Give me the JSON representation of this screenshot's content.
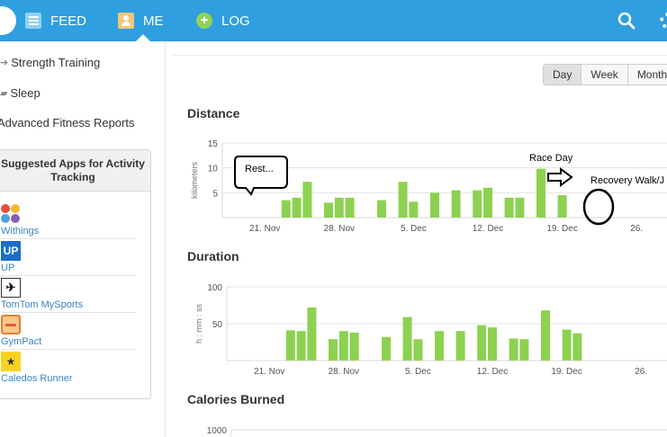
{
  "topnav": {
    "items": [
      {
        "label": "FEED",
        "icon": "feed-icon"
      },
      {
        "label": "ME",
        "icon": "me-icon"
      },
      {
        "label": "LOG",
        "icon": "log-plus-icon"
      }
    ],
    "active": "ME"
  },
  "sidebar": {
    "links": [
      {
        "label": "Strength Training",
        "icon": "arrow-right-icon"
      },
      {
        "label": "Sleep",
        "icon": "sleep-icon"
      },
      {
        "label": "Advanced Fitness Reports"
      }
    ],
    "apps_title": "Suggested Apps for Activity Tracking",
    "apps": [
      {
        "name": "Withings",
        "icon": "withings-logo-icon"
      },
      {
        "name": "UP",
        "icon": "up-logo-icon"
      },
      {
        "name": "TomTom MySports",
        "icon": "tomtom-logo-icon"
      },
      {
        "name": "GymPact",
        "icon": "gympact-logo-icon"
      },
      {
        "name": "Caledos Runner",
        "icon": "caledos-logo-icon"
      }
    ]
  },
  "range": {
    "buttons": [
      "Day",
      "Week",
      "Month"
    ],
    "active": "Day"
  },
  "sections": {
    "distance": "Distance",
    "duration": "Duration",
    "calories": "Calories Burned"
  },
  "annotations": {
    "rest": "Rest...",
    "race_day": "Race Day",
    "recovery": "Recovery Walk/J"
  },
  "colors": {
    "topbar": "#2f9fe0",
    "bar": "#8cd250",
    "link": "#3a85c3"
  },
  "chart_data": [
    {
      "type": "bar",
      "title": "Distance",
      "ylabel": "kilometers",
      "ylim": [
        0,
        15
      ],
      "yticks": [
        5,
        10,
        15
      ],
      "x_tick_labels": [
        "21. Nov",
        "28. Nov",
        "5. Dec",
        "12. Dec",
        "19. Dec",
        "26."
      ],
      "x_tick_days": [
        21,
        28,
        35,
        42,
        49,
        56
      ],
      "days": [
        17,
        18,
        19,
        20,
        21,
        22,
        23,
        24,
        25,
        26,
        27,
        28,
        29,
        30,
        31,
        32,
        33,
        34,
        35,
        36,
        37,
        38,
        39,
        40,
        41,
        42,
        43,
        44,
        45,
        46,
        47,
        48,
        49,
        50,
        51,
        52
      ],
      "values": [
        0,
        0,
        0,
        0,
        0,
        0,
        3.5,
        4,
        7.2,
        0,
        3,
        4,
        4,
        0,
        0,
        3.5,
        0,
        7.2,
        3.2,
        0,
        5,
        0,
        5.5,
        0,
        5.5,
        6,
        0,
        4,
        4,
        0,
        9.8,
        0,
        4.5,
        0,
        0,
        0
      ]
    },
    {
      "type": "bar",
      "title": "Duration",
      "ylabel": "h : mm : ss",
      "ylim": [
        0,
        100
      ],
      "yticks": [
        50,
        100
      ],
      "x_tick_labels": [
        "21. Nov",
        "28. Nov",
        "5. Dec",
        "12. Dec",
        "19. Dec",
        "26."
      ],
      "x_tick_days": [
        21,
        28,
        35,
        42,
        49,
        56
      ],
      "days": [
        17,
        18,
        19,
        20,
        21,
        22,
        23,
        24,
        25,
        26,
        27,
        28,
        29,
        30,
        31,
        32,
        33,
        34,
        35,
        36,
        37,
        38,
        39,
        40,
        41,
        42,
        43,
        44,
        45,
        46,
        47,
        48,
        49,
        50,
        51,
        52
      ],
      "values": [
        0,
        0,
        0,
        0,
        0,
        0,
        41,
        40,
        72,
        0,
        29,
        40,
        38,
        0,
        0,
        32,
        0,
        59,
        29,
        0,
        40,
        0,
        40,
        0,
        48,
        45,
        0,
        30,
        29,
        0,
        68,
        0,
        42,
        37,
        0,
        0
      ]
    },
    {
      "type": "bar",
      "title": "Calories Burned",
      "ylim": [
        0,
        1000
      ],
      "yticks": [
        1000
      ],
      "values": []
    }
  ]
}
